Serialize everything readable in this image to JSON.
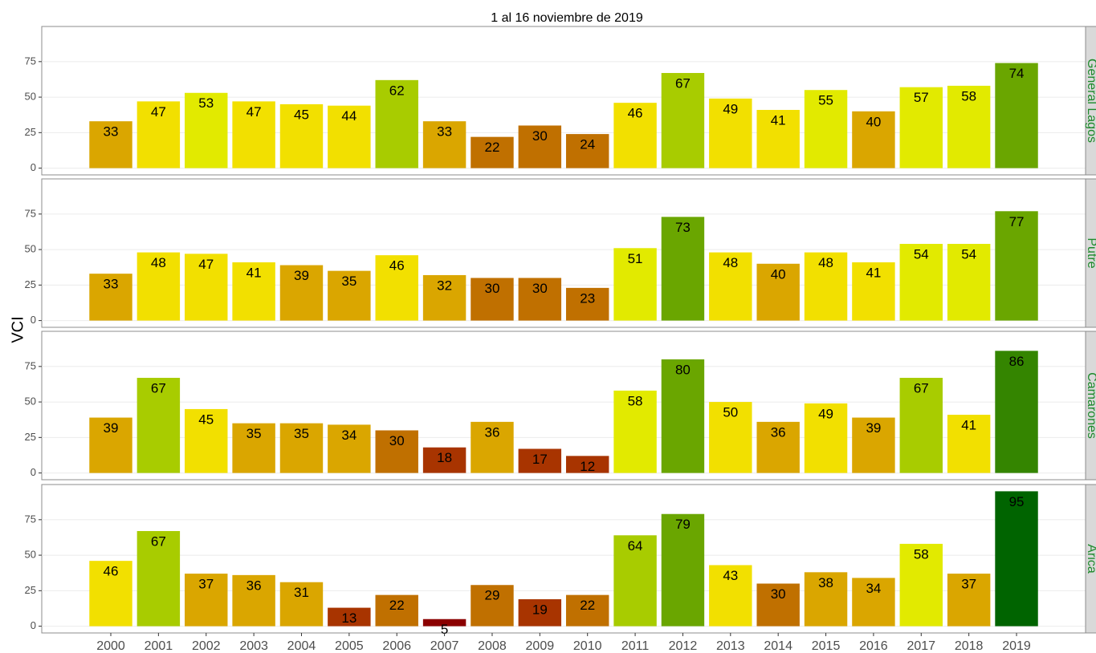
{
  "chart_data": {
    "type": "bar",
    "title": "1 al 16 noviembre de 2019",
    "y_label": "VCI",
    "categories": [
      "2000",
      "2001",
      "2002",
      "2003",
      "2004",
      "2005",
      "2006",
      "2007",
      "2008",
      "2009",
      "2010",
      "2011",
      "2012",
      "2013",
      "2014",
      "2015",
      "2016",
      "2017",
      "2018",
      "2019"
    ],
    "ylim": [
      -4.75,
      99.75
    ],
    "yticks": [
      0,
      25,
      50,
      75
    ],
    "grid": true,
    "facets": [
      {
        "label": "General Lagos",
        "values": [
          33,
          47,
          53,
          47,
          45,
          44,
          62,
          33,
          22,
          30,
          24,
          46,
          67,
          49,
          41,
          55,
          40,
          57,
          58,
          74
        ],
        "colors": [
          "#daa600",
          "#f2e000",
          "#e2ea00",
          "#f2e000",
          "#f2e000",
          "#f2e000",
          "#a8cc00",
          "#daa600",
          "#c07000",
          "#c07000",
          "#c07000",
          "#f2e000",
          "#a8cc00",
          "#f2e000",
          "#f2e000",
          "#e2ea00",
          "#daa600",
          "#e2ea00",
          "#e2ea00",
          "#6aa600"
        ]
      },
      {
        "label": "Putre",
        "values": [
          33,
          48,
          47,
          41,
          39,
          35,
          46,
          32,
          30,
          30,
          23,
          51,
          73,
          48,
          40,
          48,
          41,
          54,
          54,
          77
        ],
        "colors": [
          "#daa600",
          "#f2e000",
          "#f2e000",
          "#f2e000",
          "#daa600",
          "#daa600",
          "#f2e000",
          "#daa600",
          "#c07000",
          "#c07000",
          "#c07000",
          "#e2ea00",
          "#6aa600",
          "#f2e000",
          "#daa600",
          "#f2e000",
          "#f2e000",
          "#e2ea00",
          "#e2ea00",
          "#6aa600"
        ]
      },
      {
        "label": "Camarones",
        "values": [
          39,
          67,
          45,
          35,
          35,
          34,
          30,
          18,
          36,
          17,
          12,
          58,
          80,
          50,
          36,
          49,
          39,
          67,
          41,
          86
        ],
        "colors": [
          "#daa600",
          "#a8cc00",
          "#f2e000",
          "#daa600",
          "#daa600",
          "#daa600",
          "#c07000",
          "#a83400",
          "#daa600",
          "#a83400",
          "#a83400",
          "#e2ea00",
          "#6aa600",
          "#f2e000",
          "#daa600",
          "#f2e000",
          "#daa600",
          "#a8cc00",
          "#f2e000",
          "#348500"
        ]
      },
      {
        "label": "Arica",
        "values": [
          46,
          67,
          37,
          36,
          31,
          13,
          22,
          5,
          29,
          19,
          22,
          64,
          79,
          43,
          30,
          38,
          34,
          58,
          37,
          95
        ],
        "colors": [
          "#f2e000",
          "#a8cc00",
          "#daa600",
          "#daa600",
          "#daa600",
          "#a83400",
          "#c07000",
          "#8b0000",
          "#c07000",
          "#a83400",
          "#c07000",
          "#a8cc00",
          "#6aa600",
          "#f2e000",
          "#c07000",
          "#daa600",
          "#daa600",
          "#e2ea00",
          "#daa600",
          "#006400"
        ]
      }
    ]
  }
}
